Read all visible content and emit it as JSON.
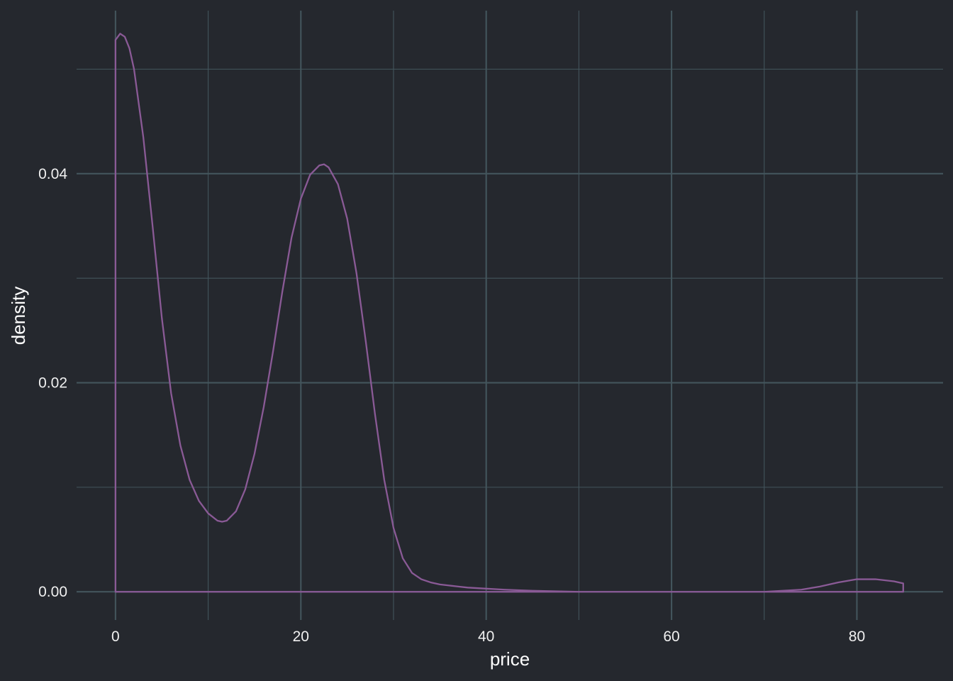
{
  "chart_data": {
    "type": "area",
    "title": "",
    "xlabel": "price",
    "ylabel": "density",
    "xlim": [
      -4.2,
      89.3
    ],
    "ylim": [
      -0.0027,
      0.0556
    ],
    "x_ticks": [
      0,
      20,
      40,
      60,
      80
    ],
    "x_tick_labels": [
      "0",
      "20",
      "40",
      "60",
      "80"
    ],
    "x_minor_ticks": [
      10,
      30,
      50,
      70
    ],
    "y_ticks": [
      0.0,
      0.02,
      0.04
    ],
    "y_tick_labels": [
      "0.00",
      "0.02",
      "0.04"
    ],
    "y_minor_ticks": [
      0.01,
      0.03,
      0.05
    ],
    "grid": true,
    "legend": "none",
    "colors": {
      "background": "#25282e",
      "grid": "#43555c",
      "curve": "#8a5a96",
      "text": "#f0f0f0"
    },
    "series": [
      {
        "x": [
          0,
          0.5,
          1,
          1.5,
          2,
          3,
          4,
          5,
          6,
          7,
          8,
          9,
          10,
          11,
          11.5,
          12,
          13,
          14,
          15,
          16,
          17,
          18,
          19,
          20,
          21,
          22,
          22.5,
          23,
          24,
          25,
          26,
          27,
          28,
          29,
          30,
          31,
          32,
          33,
          34,
          35,
          36,
          37,
          38,
          40,
          42,
          45,
          50,
          55,
          60,
          65,
          70,
          72,
          74,
          76,
          78,
          80,
          81,
          82,
          83,
          84,
          85
        ],
        "values": [
          0.0528,
          0.0534,
          0.0531,
          0.052,
          0.05,
          0.0435,
          0.035,
          0.0262,
          0.019,
          0.014,
          0.0107,
          0.0087,
          0.0075,
          0.0068,
          0.0067,
          0.0068,
          0.0077,
          0.0098,
          0.0132,
          0.0177,
          0.023,
          0.0287,
          0.0339,
          0.0376,
          0.0399,
          0.0408,
          0.0409,
          0.0406,
          0.039,
          0.0357,
          0.0305,
          0.024,
          0.017,
          0.0107,
          0.0061,
          0.0032,
          0.0018,
          0.0012,
          0.0009,
          0.0007,
          0.0006,
          0.0005,
          0.0004,
          0.0003,
          0.0002,
          0.0001,
          0.0,
          0.0,
          0.0,
          0.0,
          0.0,
          0.0001,
          0.0002,
          0.0005,
          0.0009,
          0.0012,
          0.0012,
          0.0012,
          0.0011,
          0.001,
          0.0008
        ]
      }
    ]
  }
}
